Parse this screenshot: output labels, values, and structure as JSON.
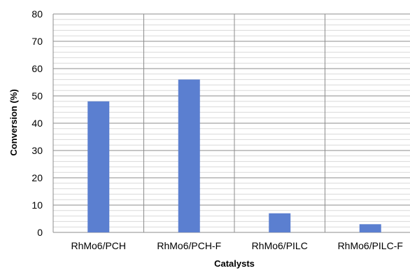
{
  "chart_data": {
    "type": "bar",
    "title": "",
    "xlabel": "Catalysts",
    "ylabel": "Conversion  (%)",
    "categories": [
      "RhMo6/PCH",
      "RhMo6/PCH-F",
      "RhMo6/PILC",
      "RhMo6/PILC-F"
    ],
    "values": [
      48,
      56,
      7,
      3
    ],
    "ylim": [
      0,
      80
    ],
    "yticks": [
      "0",
      "10",
      "20",
      "30",
      "40",
      "50",
      "60",
      "70",
      "80"
    ],
    "grid": true,
    "legend": "none",
    "colors": {
      "bar": "#5b7fd0",
      "major_grid": "#8c8c8c",
      "minor_grid": "#d9d9d9",
      "text": "#000000"
    }
  }
}
